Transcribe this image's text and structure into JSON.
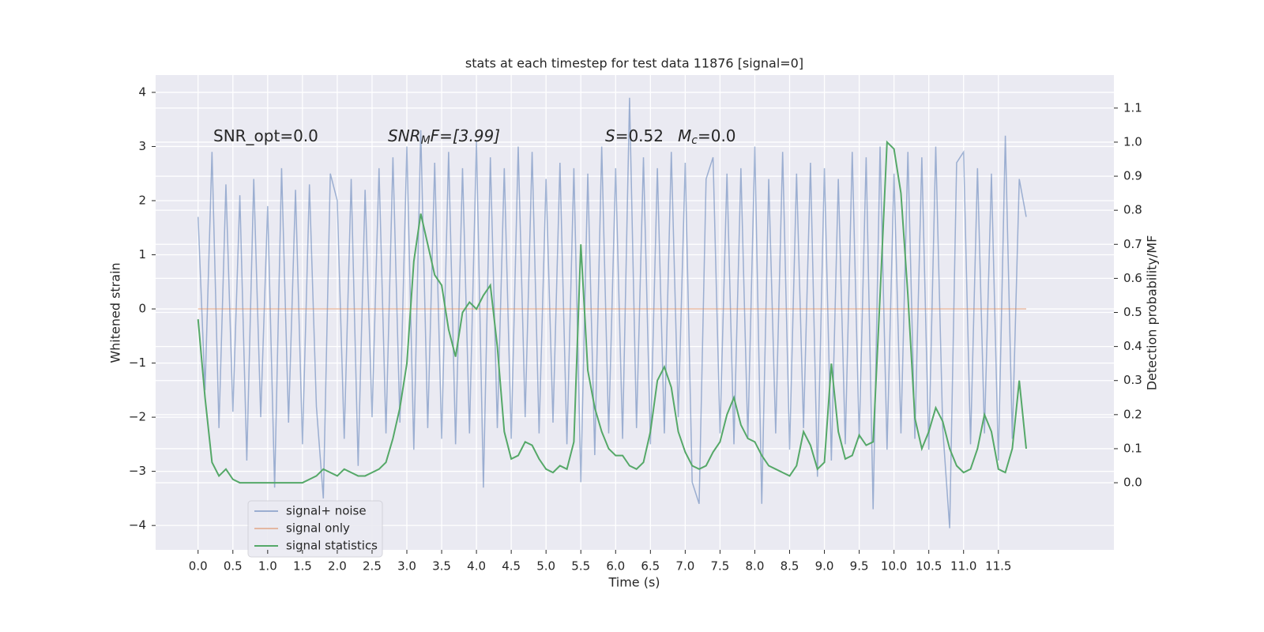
{
  "chart_data": {
    "type": "line",
    "title": "stats at each timestep for test data 11876 [signal=0]",
    "xlabel": "Time (s)",
    "ylabel": "Whitened strain",
    "y2label": "Detection probability/MF",
    "annotations": [
      {
        "parts": [
          "SNR_opt=0.0"
        ]
      },
      {
        "parts": [
          "SNR",
          "M",
          "F=[3.99]"
        ]
      },
      {
        "parts": [
          "S",
          "=0.52"
        ]
      },
      {
        "parts": [
          "M",
          "c",
          "=0.0"
        ]
      }
    ],
    "x": [
      0.0,
      0.1,
      0.2,
      0.3,
      0.4,
      0.5,
      0.6,
      0.7,
      0.8,
      0.9,
      1.0,
      1.1,
      1.2,
      1.3,
      1.4,
      1.5,
      1.6,
      1.7,
      1.8,
      1.9,
      2.0,
      2.1,
      2.2,
      2.3,
      2.4,
      2.5,
      2.6,
      2.7,
      2.8,
      2.9,
      3.0,
      3.1,
      3.2,
      3.3,
      3.4,
      3.5,
      3.6,
      3.7,
      3.8,
      3.9,
      4.0,
      4.1,
      4.2,
      4.3,
      4.4,
      4.5,
      4.6,
      4.7,
      4.8,
      4.9,
      5.0,
      5.1,
      5.2,
      5.3,
      5.4,
      5.5,
      5.6,
      5.7,
      5.8,
      5.9,
      6.0,
      6.1,
      6.2,
      6.3,
      6.4,
      6.5,
      6.6,
      6.7,
      6.8,
      6.9,
      7.0,
      7.1,
      7.2,
      7.3,
      7.4,
      7.5,
      7.6,
      7.7,
      7.8,
      7.9,
      8.0,
      8.1,
      8.2,
      8.3,
      8.4,
      8.5,
      8.6,
      8.7,
      8.8,
      8.9,
      9.0,
      9.1,
      9.2,
      9.3,
      9.4,
      9.5,
      9.6,
      9.7,
      9.8,
      9.9,
      10.0,
      10.1,
      10.2,
      10.3,
      10.4,
      10.5,
      10.6,
      10.7,
      10.8,
      10.9,
      11.0,
      11.1,
      11.2,
      11.3,
      11.4,
      11.5,
      11.6,
      11.7,
      11.8,
      11.9
    ],
    "series": [
      {
        "name": "signal+ noise",
        "color": "#4c72b0",
        "alpha": 0.5,
        "values": [
          1.7,
          -1.5,
          2.9,
          -2.2,
          2.3,
          -1.9,
          2.1,
          -2.8,
          2.4,
          -2.0,
          1.9,
          -3.3,
          2.6,
          -2.1,
          2.2,
          -2.5,
          2.3,
          -1.8,
          -3.5,
          2.5,
          2.0,
          -2.4,
          2.4,
          -2.9,
          2.2,
          -2.0,
          2.6,
          -2.3,
          2.8,
          -2.1,
          3.0,
          -2.6,
          3.3,
          -2.2,
          2.7,
          -2.4,
          2.9,
          -2.5,
          2.6,
          -2.3,
          3.1,
          -3.3,
          2.8,
          -2.2,
          2.6,
          -2.4,
          3.0,
          -2.0,
          2.9,
          -2.3,
          2.4,
          -2.1,
          2.7,
          -2.5,
          2.6,
          -3.2,
          2.5,
          -2.7,
          3.0,
          -2.3,
          2.6,
          -2.4,
          3.9,
          -2.2,
          2.8,
          -2.5,
          2.6,
          -2.3,
          2.9,
          -2.0,
          2.7,
          -3.2,
          -3.6,
          2.4,
          2.8,
          -2.3,
          2.5,
          -2.5,
          2.6,
          -2.4,
          3.0,
          -3.6,
          2.4,
          -2.3,
          2.9,
          -2.6,
          2.5,
          -2.2,
          2.7,
          -3.1,
          2.6,
          -2.8,
          2.4,
          -2.5,
          2.9,
          -2.4,
          2.8,
          -3.7,
          3.0,
          -2.6,
          2.5,
          -2.3,
          2.9,
          -2.4,
          2.8,
          -2.6,
          3.0,
          -2.2,
          -4.05,
          2.7,
          2.9,
          -2.5,
          2.6,
          -2.3,
          2.5,
          -2.8,
          3.2,
          -2.4,
          2.4,
          1.7
        ]
      },
      {
        "name": "signal only",
        "color": "#dd8452",
        "alpha": 0.5,
        "values": [
          0,
          0,
          0,
          0,
          0,
          0,
          0,
          0,
          0,
          0,
          0,
          0,
          0,
          0,
          0,
          0,
          0,
          0,
          0,
          0,
          0,
          0,
          0,
          0,
          0,
          0,
          0,
          0,
          0,
          0,
          0,
          0,
          0,
          0,
          0,
          0,
          0,
          0,
          0,
          0,
          0,
          0,
          0,
          0,
          0,
          0,
          0,
          0,
          0,
          0,
          0,
          0,
          0,
          0,
          0,
          0,
          0,
          0,
          0,
          0,
          0,
          0,
          0,
          0,
          0,
          0,
          0,
          0,
          0,
          0,
          0,
          0,
          0,
          0,
          0,
          0,
          0,
          0,
          0,
          0,
          0,
          0,
          0,
          0,
          0,
          0,
          0,
          0,
          0,
          0,
          0,
          0,
          0,
          0,
          0,
          0,
          0,
          0,
          0,
          0,
          0,
          0,
          0,
          0,
          0,
          0,
          0,
          0,
          0,
          0,
          0,
          0,
          0,
          0,
          0,
          0,
          0,
          0,
          0,
          0
        ]
      },
      {
        "name": "signal statistics",
        "color": "#55a868",
        "alpha": 1,
        "axis": "y2",
        "values": [
          0.48,
          0.25,
          0.06,
          0.02,
          0.04,
          0.01,
          0.0,
          0.0,
          0.0,
          0.0,
          0.0,
          0.0,
          0.0,
          0.0,
          0.0,
          0.0,
          0.01,
          0.02,
          0.04,
          0.03,
          0.02,
          0.04,
          0.03,
          0.02,
          0.02,
          0.03,
          0.04,
          0.06,
          0.13,
          0.22,
          0.35,
          0.65,
          0.79,
          0.7,
          0.61,
          0.58,
          0.45,
          0.37,
          0.5,
          0.53,
          0.51,
          0.55,
          0.58,
          0.4,
          0.15,
          0.07,
          0.08,
          0.12,
          0.11,
          0.07,
          0.04,
          0.03,
          0.05,
          0.04,
          0.12,
          0.7,
          0.33,
          0.22,
          0.15,
          0.1,
          0.08,
          0.08,
          0.05,
          0.04,
          0.06,
          0.15,
          0.3,
          0.34,
          0.28,
          0.15,
          0.09,
          0.05,
          0.04,
          0.05,
          0.09,
          0.12,
          0.2,
          0.25,
          0.17,
          0.13,
          0.12,
          0.08,
          0.05,
          0.04,
          0.03,
          0.02,
          0.05,
          0.15,
          0.11,
          0.04,
          0.06,
          0.35,
          0.15,
          0.07,
          0.08,
          0.14,
          0.11,
          0.12,
          0.55,
          1.0,
          0.98,
          0.85,
          0.55,
          0.19,
          0.1,
          0.15,
          0.22,
          0.18,
          0.1,
          0.05,
          0.03,
          0.04,
          0.1,
          0.2,
          0.15,
          0.04,
          0.03,
          0.1,
          0.3,
          0.1
        ]
      }
    ],
    "xlim": [
      -0.61,
      13.16
    ],
    "ylim": [
      -4.45,
      4.32
    ],
    "y2lim": [
      -0.197,
      1.197
    ],
    "xticks": [
      {
        "value": 0,
        "label": "0.0"
      },
      {
        "value": 0.5,
        "label": "0.5"
      },
      {
        "value": 1,
        "label": "1.0"
      },
      {
        "value": 1.5,
        "label": "1.5"
      },
      {
        "value": 2,
        "label": "2.0"
      },
      {
        "value": 2.5,
        "label": "2.5"
      },
      {
        "value": 3,
        "label": "3.0"
      },
      {
        "value": 3.5,
        "label": "3.5"
      },
      {
        "value": 4,
        "label": "4.0"
      },
      {
        "value": 4.5,
        "label": "4.5"
      },
      {
        "value": 5,
        "label": "5.0"
      },
      {
        "value": 5.5,
        "label": "5.5"
      },
      {
        "value": 6,
        "label": "6.0"
      },
      {
        "value": 6.5,
        "label": "6.5"
      },
      {
        "value": 7,
        "label": "7.0"
      },
      {
        "value": 7.5,
        "label": "7.5"
      },
      {
        "value": 8,
        "label": "8.0"
      },
      {
        "value": 8.5,
        "label": "8.5"
      },
      {
        "value": 9,
        "label": "9.0"
      },
      {
        "value": 9.5,
        "label": "9.5"
      },
      {
        "value": 10,
        "label": "10.0"
      },
      {
        "value": 10.5,
        "label": "10.5"
      },
      {
        "value": 11,
        "label": "11.0"
      },
      {
        "value": 11.5,
        "label": "11.5"
      }
    ],
    "yticks": [
      {
        "value": -4,
        "label": "−4"
      },
      {
        "value": -3,
        "label": "−3"
      },
      {
        "value": -2,
        "label": "−2"
      },
      {
        "value": -1,
        "label": "−1"
      },
      0,
      1,
      2,
      3,
      4
    ],
    "y2ticks": [
      {
        "value": 0,
        "label": "0.0"
      },
      {
        "value": 0.1,
        "label": "0.1"
      },
      {
        "value": 0.2,
        "label": "0.2"
      },
      {
        "value": 0.3,
        "label": "0.3"
      },
      {
        "value": 0.4,
        "label": "0.4"
      },
      {
        "value": 0.5,
        "label": "0.5"
      },
      {
        "value": 0.6,
        "label": "0.6"
      },
      {
        "value": 0.7,
        "label": "0.7"
      },
      {
        "value": 0.8,
        "label": "0.8"
      },
      {
        "value": 0.9,
        "label": "0.9"
      },
      {
        "value": 1,
        "label": "1.0"
      },
      {
        "value": 1.1,
        "label": "1.1"
      }
    ],
    "grid": true,
    "legend": "lower left"
  }
}
